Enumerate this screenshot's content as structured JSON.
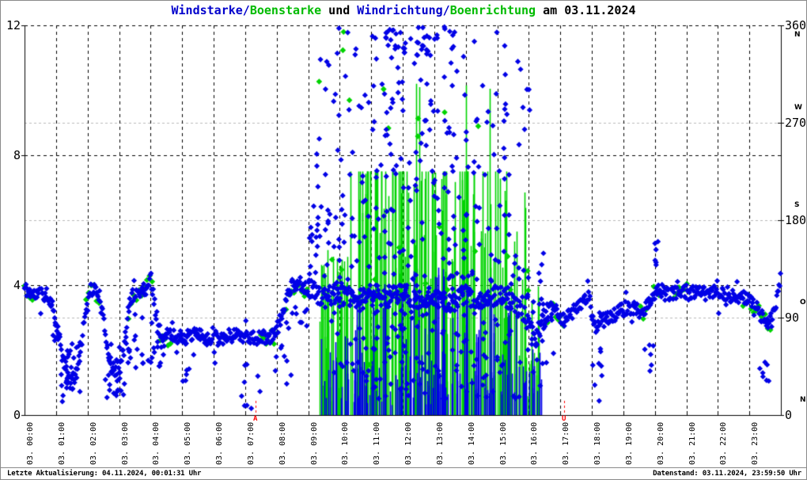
{
  "page": {
    "footer_left": "Letzte Aktualisierung: 04.11.2024, 00:01:31 Uhr",
    "footer_right": "Datenstand: 03.11.2024, 23:59:50 Uhr"
  },
  "chart_data": {
    "type": "scatter",
    "title_parts": [
      {
        "text": "Windstarke/",
        "color": "#0000cc"
      },
      {
        "text": "Boenstarke",
        "color": "#00bb00"
      },
      {
        "text": " und ",
        "color": "#000000"
      },
      {
        "text": "Windrichtung/",
        "color": "#0000cc"
      },
      {
        "text": "Boenrichtung",
        "color": "#00bb00"
      },
      {
        "text": " am 03.11.2024",
        "color": "#000000"
      }
    ],
    "colors": {
      "wind_blue": "#0000e6",
      "gust_green": "#00d300",
      "sun_red": "#ff0000",
      "grid_major": "#000000",
      "grid_minor": "#b8b8b8",
      "axis": "#000000"
    },
    "x_axis": {
      "min_hour": 0,
      "max_hour": 24,
      "grid": "hourly-dashed",
      "tick_labels": [
        "03. 00:00",
        "03. 01:00",
        "03. 02:00",
        "03. 03:00",
        "03. 04:00",
        "03. 05:00",
        "03. 06:00",
        "03. 07:00",
        "03. 08:00",
        "03. 09:00",
        "03. 10:00",
        "03. 11:00",
        "03. 12:00",
        "03. 13:00",
        "03. 14:00",
        "03. 15:00",
        "03. 16:00",
        "03. 17:00",
        "03. 18:00",
        "03. 19:00",
        "03. 20:00",
        "03. 21:00",
        "03. 22:00",
        "03. 23:00"
      ]
    },
    "y_left": {
      "min": 0,
      "max": 12,
      "tick_values": [
        0,
        4,
        8,
        12
      ],
      "tick_labels": [
        "0",
        "4",
        "8",
        "12"
      ],
      "grid_values": [
        4,
        8,
        12
      ]
    },
    "y_right": {
      "min": 0,
      "max": 360,
      "ticks": [
        {
          "value": 0,
          "label": "0",
          "compass": "N"
        },
        {
          "value": 90,
          "label": "90",
          "compass": "O"
        },
        {
          "value": 180,
          "label": "180",
          "compass": "S"
        },
        {
          "value": 270,
          "label": "270",
          "compass": "W"
        },
        {
          "value": 360,
          "label": "360",
          "compass": "N"
        }
      ],
      "grid_values": [
        90,
        180,
        270
      ]
    },
    "sun_markers": [
      {
        "t": 7.33,
        "label": "A"
      },
      {
        "t": 17.12,
        "label": "U"
      }
    ],
    "series": {
      "windstaerke_windrichtung_points": {
        "name": "Windstarke / Windrichtung",
        "color": "#0000e6",
        "marker": "diamond",
        "band_step_min": 1.4,
        "band_jitter": 0.22,
        "chaos_window": [
          9.0,
          16.5
        ],
        "chaos_jitter": 0.3,
        "seed": 11,
        "band_keyframes": [
          [
            0,
            3.9
          ],
          [
            0.3,
            3.7
          ],
          [
            0.6,
            3.75
          ],
          [
            0.85,
            3.5
          ],
          [
            1.0,
            2.9
          ],
          [
            1.2,
            1.8
          ],
          [
            1.45,
            1.0
          ],
          [
            1.7,
            1.4
          ],
          [
            1.9,
            3.0
          ],
          [
            2.05,
            3.9
          ],
          [
            2.35,
            3.8
          ],
          [
            2.55,
            2.6
          ],
          [
            2.75,
            1.5
          ],
          [
            2.95,
            1.2
          ],
          [
            3.15,
            2.0
          ],
          [
            3.35,
            3.6
          ],
          [
            3.6,
            3.8
          ],
          [
            3.85,
            3.9
          ],
          [
            4.0,
            4.25
          ],
          [
            4.15,
            3.3
          ],
          [
            4.35,
            2.3
          ],
          [
            4.6,
            2.5
          ],
          [
            4.9,
            2.4
          ],
          [
            5.2,
            2.4
          ],
          [
            5.5,
            2.45
          ],
          [
            5.8,
            2.35
          ],
          [
            6.1,
            2.4
          ],
          [
            6.4,
            2.4
          ],
          [
            6.7,
            2.5
          ],
          [
            7.0,
            2.45
          ],
          [
            7.3,
            2.35
          ],
          [
            7.6,
            2.4
          ],
          [
            7.9,
            2.4
          ],
          [
            8.15,
            3.0
          ],
          [
            8.4,
            3.9
          ],
          [
            8.7,
            4.1
          ],
          [
            9.0,
            3.9
          ],
          [
            9.5,
            3.6
          ],
          [
            10.0,
            3.8
          ],
          [
            10.5,
            3.5
          ],
          [
            11.0,
            3.8
          ],
          [
            11.5,
            3.6
          ],
          [
            12.0,
            3.8
          ],
          [
            12.5,
            3.5
          ],
          [
            13.0,
            3.7
          ],
          [
            13.5,
            3.4
          ],
          [
            14.0,
            3.7
          ],
          [
            14.5,
            3.5
          ],
          [
            15.0,
            3.7
          ],
          [
            15.5,
            3.5
          ],
          [
            15.9,
            3.0
          ],
          [
            16.2,
            2.3
          ],
          [
            16.5,
            3.0
          ],
          [
            16.8,
            3.4
          ],
          [
            17.1,
            2.9
          ],
          [
            17.5,
            3.3
          ],
          [
            17.9,
            3.7
          ],
          [
            18.1,
            2.7
          ],
          [
            18.35,
            2.9
          ],
          [
            18.7,
            3.1
          ],
          [
            19.1,
            3.3
          ],
          [
            19.35,
            3.3
          ],
          [
            19.6,
            3.1
          ],
          [
            19.9,
            3.6
          ],
          [
            20.1,
            3.9
          ],
          [
            20.4,
            3.7
          ],
          [
            20.8,
            3.8
          ],
          [
            21.2,
            3.8
          ],
          [
            21.6,
            3.75
          ],
          [
            22.0,
            3.8
          ],
          [
            22.4,
            3.7
          ],
          [
            22.8,
            3.6
          ],
          [
            23.1,
            3.5
          ],
          [
            23.35,
            3.1
          ],
          [
            23.6,
            2.7
          ],
          [
            23.8,
            3.2
          ],
          [
            23.95,
            4.0
          ],
          [
            24.0,
            4.25
          ]
        ],
        "scatter_segments": [
          [
            0.9,
            1.15,
            2.2,
            3.2,
            8
          ],
          [
            1.1,
            1.85,
            0.3,
            2.3,
            26
          ],
          [
            2.5,
            3.25,
            0.4,
            2.3,
            22
          ],
          [
            3.2,
            4.1,
            1.2,
            3.1,
            18
          ],
          [
            4.1,
            4.5,
            1.4,
            2.7,
            10
          ],
          [
            5.0,
            5.3,
            0.9,
            1.6,
            5
          ],
          [
            6.8,
            7.5,
            0.2,
            1.6,
            9
          ],
          [
            7.9,
            8.5,
            0.7,
            2.2,
            8
          ],
          [
            8.2,
            9.0,
            2.6,
            3.4,
            10
          ],
          [
            17.9,
            18.35,
            0.4,
            2.4,
            8
          ],
          [
            19.6,
            20.0,
            1.0,
            2.2,
            6
          ],
          [
            19.95,
            20.1,
            4.3,
            5.4,
            6
          ],
          [
            23.3,
            23.85,
            1.0,
            2.4,
            7
          ],
          [
            9.0,
            9.7,
            4.0,
            6.5,
            25
          ],
          [
            9.2,
            10.2,
            6.5,
            12,
            18
          ],
          [
            9.7,
            10.6,
            1.0,
            6.5,
            35
          ],
          [
            10.2,
            11.3,
            6.5,
            11.8,
            22
          ],
          [
            10.6,
            11.6,
            0.5,
            6.5,
            45
          ],
          [
            11.3,
            12.7,
            6.8,
            12,
            45
          ],
          [
            11.6,
            12.8,
            0.4,
            6.8,
            55
          ],
          [
            12.7,
            14.1,
            6.8,
            12,
            40
          ],
          [
            12.8,
            14.1,
            0.4,
            6.8,
            55
          ],
          [
            14.1,
            15.4,
            6.8,
            11.8,
            25
          ],
          [
            14.1,
            15.5,
            0.4,
            6.5,
            45
          ],
          [
            15.4,
            16.1,
            8.0,
            11.5,
            8
          ],
          [
            15.5,
            16.5,
            0.5,
            5.0,
            30
          ],
          [
            16.4,
            16.8,
            1.5,
            4.0,
            12
          ],
          [
            11.4,
            13.7,
            11.0,
            12.0,
            30
          ]
        ]
      },
      "boenstarke_boenrichtung_points": {
        "name": "Boenstarke / Boenrichtung",
        "color": "#00d300",
        "marker": "diamond",
        "band_step_min": 5,
        "band_jitter": 0.32,
        "seed": 22,
        "band_windows": [
          [
            0,
            0.35
          ],
          [
            1.95,
            2.4
          ],
          [
            3.3,
            4.1
          ],
          [
            4.3,
            4.7
          ],
          [
            7.5,
            8.0
          ],
          [
            8.3,
            9.0
          ],
          [
            16.6,
            17.15
          ],
          [
            19.55,
            20.15
          ],
          [
            20.6,
            21.05
          ],
          [
            22.8,
            23.4
          ],
          [
            23.5,
            23.7
          ]
        ],
        "scatter_segments": [
          [
            9.3,
            15.0,
            7.5,
            12,
            10
          ],
          [
            9.5,
            16.0,
            1.5,
            7.0,
            14
          ]
        ]
      },
      "boenstarke_impulses": {
        "name": "Boenstarke (Impulse)",
        "color": "#00d300",
        "style": "impulse",
        "ceiling": 7.5,
        "ceiling_prob": 0.32,
        "seed": 33,
        "clusters": [
          [
            9.33,
            9.7,
            2.0,
            5.2,
            12
          ],
          [
            9.7,
            10.3,
            1.5,
            5.2,
            18
          ],
          [
            10.3,
            11.0,
            2.0,
            7.5,
            22
          ],
          [
            11.0,
            11.8,
            1.5,
            7.5,
            26
          ],
          [
            11.8,
            12.7,
            1.0,
            7.5,
            28
          ],
          [
            12.7,
            13.6,
            1.0,
            7.5,
            30
          ],
          [
            13.6,
            14.5,
            1.5,
            7.5,
            26
          ],
          [
            14.5,
            15.3,
            1.0,
            7.5,
            22
          ],
          [
            15.3,
            15.9,
            1.0,
            7.0,
            14
          ],
          [
            15.9,
            16.45,
            0.8,
            4.5,
            10
          ],
          [
            9.4,
            16.3,
            0.3,
            1.8,
            60
          ]
        ],
        "spikes": [
          [
            12.42,
            10.2
          ],
          [
            12.52,
            10.1
          ],
          [
            14.02,
            10.15
          ],
          [
            14.77,
            10.05
          ]
        ]
      },
      "windstaerke_impulses": {
        "name": "Windstarke (Impulse)",
        "color": "#0000e6",
        "style": "impulse",
        "seed": 44,
        "clusters": [
          [
            9.33,
            10.2,
            0.5,
            2.8,
            10
          ],
          [
            10.2,
            11.2,
            0.5,
            3.5,
            14
          ],
          [
            11.2,
            12.4,
            0.5,
            4.5,
            18
          ],
          [
            12.4,
            13.5,
            0.5,
            5.2,
            20
          ],
          [
            13.5,
            14.6,
            0.5,
            4.5,
            18
          ],
          [
            14.6,
            15.6,
            0.5,
            3.8,
            14
          ],
          [
            15.6,
            16.4,
            0.4,
            2.5,
            8
          ],
          [
            9.4,
            16.3,
            0.3,
            1.5,
            50
          ]
        ]
      }
    }
  }
}
